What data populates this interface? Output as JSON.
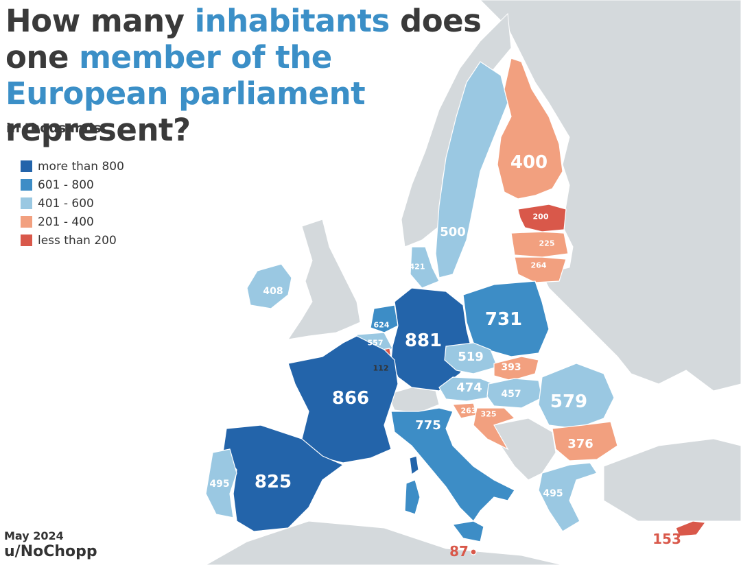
{
  "title": {
    "part1": "How many ",
    "part2": "inhabitants",
    "part3": " does one ",
    "part4": "member of the European parliament",
    "part5": " represent?"
  },
  "subtitle": "in thousands",
  "legend": [
    {
      "label": "more than 800",
      "color": "#2364aa"
    },
    {
      "label": "601 - 800",
      "color": "#3d8dc6"
    },
    {
      "label": "401 - 600",
      "color": "#9ac8e2"
    },
    {
      "label": "201 - 400",
      "color": "#f2a07f"
    },
    {
      "label": "less than 200",
      "color": "#d9584a"
    }
  ],
  "countries": {
    "germany": "881",
    "france": "866",
    "spain": "825",
    "italy": "775",
    "poland": "731",
    "romania": "579",
    "netherlands": "624",
    "belgium": "557",
    "czechia": "519",
    "sweden": "500",
    "portugal": "495",
    "greece": "495",
    "austria": "474",
    "hungary": "457",
    "denmark": "421",
    "ireland": "408",
    "finland": "400",
    "slovakia": "393",
    "bulgaria": "376",
    "croatia": "325",
    "latvia": "225",
    "lithuania": "264",
    "slovenia": "263",
    "estonia": "200",
    "cyprus": "153",
    "luxembourg": "112",
    "malta": "87"
  },
  "footer": {
    "date": "May 2024",
    "author": "u/NoChopp"
  }
}
